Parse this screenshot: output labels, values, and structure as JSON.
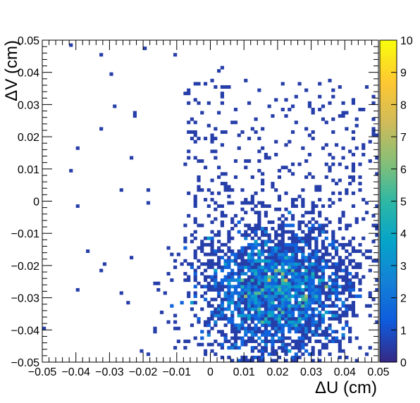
{
  "chart_data": {
    "type": "heatmap",
    "title": "",
    "xlabel": "ΔU (cm)",
    "ylabel": "ΔV (cm)",
    "xlim": [
      -0.05,
      0.05
    ],
    "ylim": [
      -0.05,
      0.05
    ],
    "x_ticks": [
      "−0.05",
      "−0.04",
      "−0.03",
      "−0.02",
      "−0.01",
      "0",
      "0.01",
      "0.02",
      "0.03",
      "0.04",
      "0.05"
    ],
    "y_ticks": [
      "−0.05",
      "−0.04",
      "−0.03",
      "−0.02",
      "−0.01",
      "0",
      "0.01",
      "0.02",
      "0.03",
      "0.04",
      "0.05"
    ],
    "bins_x": 100,
    "bins_y": 100,
    "colorbar": {
      "range": [
        0,
        10
      ],
      "ticks": [
        "0",
        "1",
        "2",
        "3",
        "4",
        "5",
        "6",
        "7",
        "8",
        "9",
        "10"
      ],
      "palette": [
        "#352a87",
        "#0f5cdd",
        "#1481d6",
        "#06a4ca",
        "#2eb7a4",
        "#87bf77",
        "#d1bb59",
        "#fec832",
        "#f9fb0e"
      ]
    },
    "distribution": {
      "peak_center": [
        0.02,
        -0.028
      ],
      "peak_spread": [
        0.012,
        0.011
      ],
      "max_count": 10,
      "background": "sparse counts of 1 spread over most of the upper half"
    }
  }
}
